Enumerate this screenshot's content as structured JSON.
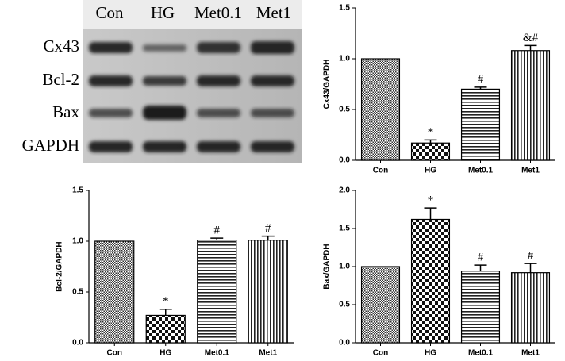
{
  "blot": {
    "lanes": [
      "Con",
      "HG",
      "Met0.1",
      "Met1"
    ],
    "rows": [
      "Cx43",
      "Bcl-2",
      "Bax",
      "GAPDH"
    ]
  },
  "chart_data": [
    {
      "type": "bar",
      "y_label": "Cx43/GAPDH",
      "categories": [
        "Con",
        "HG",
        "Met0.1",
        "Met1"
      ],
      "values": [
        1.0,
        0.17,
        0.7,
        1.08
      ],
      "errors": [
        null,
        0.03,
        0.02,
        0.05
      ],
      "annotations": [
        null,
        "*",
        "#",
        "&#"
      ],
      "ylim": [
        0,
        1.5
      ],
      "yticks": [
        {
          "value": 0,
          "label": "0.0"
        },
        {
          "value": 0.5,
          "label": "0.5"
        },
        {
          "value": 1.0,
          "label": "1.0"
        },
        {
          "value": 1.5,
          "label": "1.5"
        }
      ]
    },
    {
      "type": "bar",
      "y_label": "Bcl-2/GAPDH",
      "categories": [
        "Con",
        "HG",
        "Met0.1",
        "Met1"
      ],
      "values": [
        1.0,
        0.27,
        1.01,
        1.01
      ],
      "errors": [
        null,
        0.06,
        0.02,
        0.04
      ],
      "annotations": [
        null,
        "*",
        "#",
        "#"
      ],
      "ylim": [
        0,
        1.5
      ],
      "yticks": [
        {
          "value": 0,
          "label": "0.0"
        },
        {
          "value": 0.5,
          "label": "0.5"
        },
        {
          "value": 1.0,
          "label": "1.0"
        },
        {
          "value": 1.5,
          "label": "1.5"
        }
      ]
    },
    {
      "type": "bar",
      "y_label": "Bax/GAPDH",
      "categories": [
        "Con",
        "HG",
        "Met0.1",
        "Met1"
      ],
      "values": [
        1.0,
        1.62,
        0.94,
        0.92
      ],
      "errors": [
        null,
        0.15,
        0.08,
        0.12
      ],
      "annotations": [
        null,
        "*",
        "#",
        "#"
      ],
      "ylim": [
        0,
        2.0
      ],
      "yticks": [
        {
          "value": 0,
          "label": "0.0"
        },
        {
          "value": 0.5,
          "label": "0.5"
        },
        {
          "value": 1.0,
          "label": "1.0"
        },
        {
          "value": 1.5,
          "label": "1.5"
        },
        {
          "value": 2.0,
          "label": "2.0"
        }
      ]
    }
  ]
}
